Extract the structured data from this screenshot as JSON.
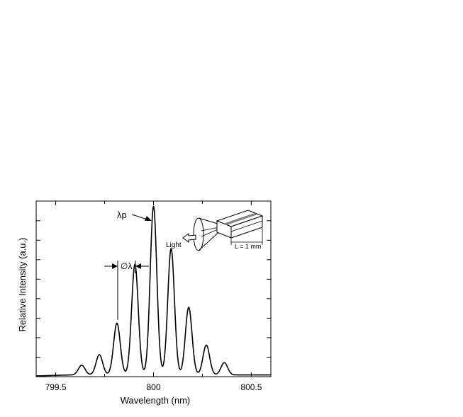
{
  "chart_data": {
    "type": "line",
    "title": "",
    "xlabel": "Wavelength (nm)",
    "ylabel": "Relative Intensity (a.u.)",
    "xlim": [
      799.4,
      800.6
    ],
    "ylim": [
      0,
      1.0
    ],
    "x_ticks": [
      799.5,
      800,
      800.5
    ],
    "x_tick_labels": [
      "799.5",
      "800",
      "800.5"
    ],
    "y_tick_labels_shown": false,
    "grid": false,
    "legend": "none",
    "series": [
      {
        "color": "#000000",
        "peaks": [
          {
            "x": 799.633,
            "y": 0.055
          },
          {
            "x": 799.723,
            "y": 0.115
          },
          {
            "x": 799.813,
            "y": 0.295
          },
          {
            "x": 799.905,
            "y": 0.63
          },
          {
            "x": 800.0,
            "y": 0.96
          },
          {
            "x": 800.09,
            "y": 0.72
          },
          {
            "x": 800.18,
            "y": 0.385
          },
          {
            "x": 800.27,
            "y": 0.17
          },
          {
            "x": 800.362,
            "y": 0.07
          }
        ],
        "peak_width_nm": 0.021,
        "baseline": 0.01
      }
    ],
    "annotations": [
      {
        "text": "λp",
        "target": "central peak"
      },
      {
        "text": "∅λ",
        "target": "peak spacing"
      },
      {
        "text": "Light",
        "target": "inset emission cone"
      },
      {
        "text": "L = 1 mm",
        "target": "inset device length"
      }
    ]
  }
}
